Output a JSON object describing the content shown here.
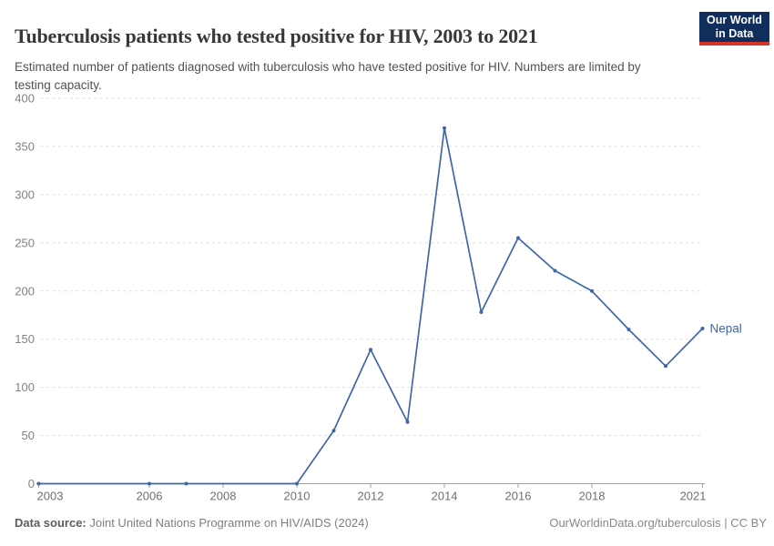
{
  "header": {
    "title": "Tuberculosis patients who tested positive for HIV, 2003 to 2021",
    "subtitle": "Estimated number of patients diagnosed with tuberculosis who have tested positive for HIV. Numbers are limited by testing capacity.",
    "logo": {
      "line1": "Our World",
      "line2": "in Data",
      "bg_color": "#0f2e5c",
      "accent_color": "#d8352a"
    }
  },
  "chart_data": {
    "type": "line",
    "title": "Tuberculosis patients who tested positive for HIV, 2003 to 2021",
    "xlabel": "",
    "ylabel": "",
    "xlim": [
      2003,
      2021
    ],
    "ylim": [
      0,
      400
    ],
    "grid": "horizontal-dashed",
    "legend_position": "end-of-line-label",
    "x_ticks": [
      2003,
      2006,
      2008,
      2010,
      2012,
      2014,
      2016,
      2018,
      2021
    ],
    "y_ticks": [
      0,
      50,
      100,
      150,
      200,
      250,
      300,
      350,
      400
    ],
    "series": [
      {
        "name": "Nepal",
        "color": "#3e66a8",
        "points": [
          [
            2003,
            0
          ],
          [
            2006,
            0
          ],
          [
            2007,
            0
          ],
          [
            2010,
            0
          ],
          [
            2011,
            55
          ],
          [
            2012,
            139
          ],
          [
            2013,
            64
          ],
          [
            2014,
            369
          ],
          [
            2015,
            178
          ],
          [
            2016,
            255
          ],
          [
            2017,
            221
          ],
          [
            2018,
            200
          ],
          [
            2019,
            160
          ],
          [
            2020,
            122
          ],
          [
            2021,
            161
          ]
        ]
      }
    ]
  },
  "footer": {
    "source_label": "Data source:",
    "source_text": " Joint United Nations Programme on HIV/AIDS (2024)",
    "rights": "OurWorldinData.org/tuberculosis | CC BY"
  }
}
